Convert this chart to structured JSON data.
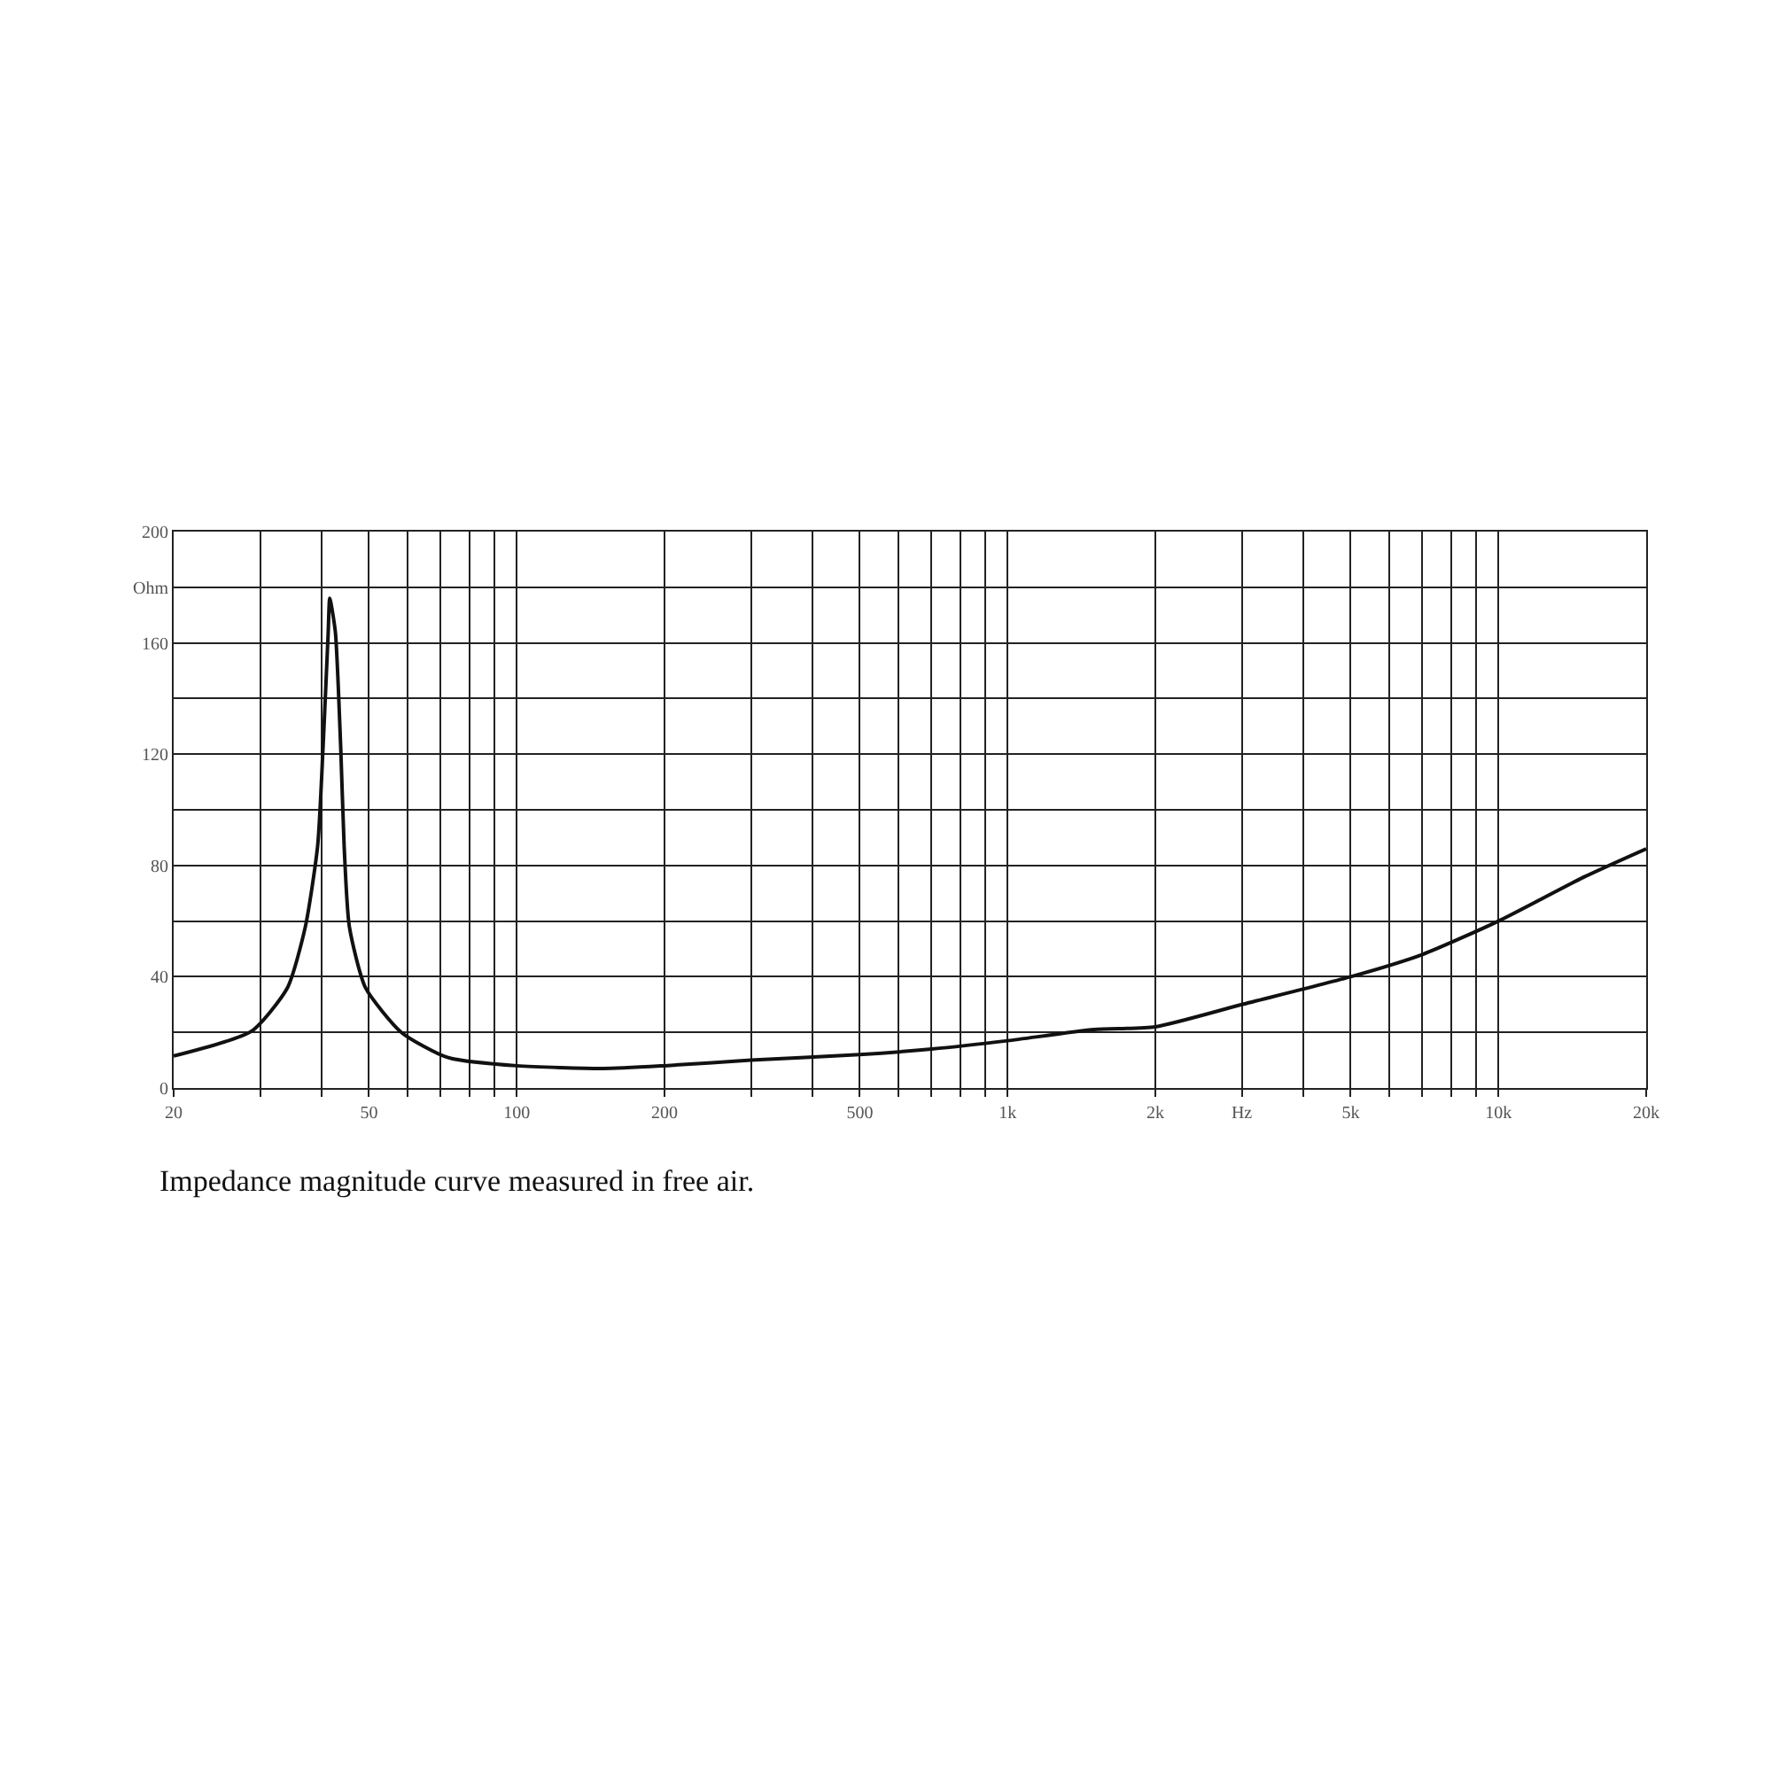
{
  "chart_data": {
    "type": "line",
    "annotations": [
      "Impedance magnitude curve measured in free air."
    ],
    "x": [
      20,
      28.8,
      34.1,
      37.1,
      39.3,
      40.3,
      41.3,
      41.6,
      42.7,
      43.8,
      44.5,
      45.6,
      49.2,
      58.2,
      72.2,
      100,
      150,
      200,
      300,
      500,
      700,
      1000,
      1500,
      2000,
      3000,
      5000,
      7000,
      10000,
      15000,
      20000
    ],
    "series": [
      {
        "color": "#111111",
        "values": [
          11.5,
          20.4,
          36,
          58,
          87,
          122,
          164,
          176,
          164,
          122,
          87,
          58,
          36,
          20,
          11,
          8,
          7,
          8,
          10,
          12,
          14,
          17,
          21,
          22,
          30,
          40,
          48,
          60,
          76,
          86
        ]
      }
    ],
    "xlim": [
      20,
      20000
    ],
    "ylim": [
      0,
      200
    ],
    "log": "x",
    "grid": true,
    "marker": "none",
    "line_style": "solid",
    "xticks": [
      20,
      {
        "value": 30,
        "label": null
      },
      {
        "value": 40,
        "label": null
      },
      50,
      {
        "value": 60,
        "label": null
      },
      {
        "value": 70,
        "label": null
      },
      {
        "value": 80,
        "label": null
      },
      {
        "value": 90,
        "label": null
      },
      100,
      200,
      {
        "value": 300,
        "label": null
      },
      {
        "value": 400,
        "label": null
      },
      500,
      {
        "value": 600,
        "label": null
      },
      {
        "value": 700,
        "label": null
      },
      {
        "value": 800,
        "label": null
      },
      {
        "value": 900,
        "label": null
      },
      {
        "value": 1000,
        "label": "1k"
      },
      {
        "value": 2000,
        "label": "2k"
      },
      {
        "value": 3000,
        "label": "Hz"
      },
      {
        "value": 4000,
        "label": null
      },
      {
        "value": 5000,
        "label": "5k"
      },
      {
        "value": 6000,
        "label": null
      },
      {
        "value": 7000,
        "label": null
      },
      {
        "value": 8000,
        "label": null
      },
      {
        "value": 9000,
        "label": null
      },
      {
        "value": 10000,
        "label": "10k"
      },
      {
        "value": 20000,
        "label": "20k"
      }
    ],
    "yticks": [
      0,
      {
        "value": 20,
        "label": null
      },
      40,
      {
        "value": 60,
        "label": null
      },
      80,
      {
        "value": 100,
        "label": null
      },
      120,
      {
        "value": 140,
        "label": null
      },
      160,
      {
        "value": 180,
        "label": "Ohm"
      },
      200
    ]
  }
}
